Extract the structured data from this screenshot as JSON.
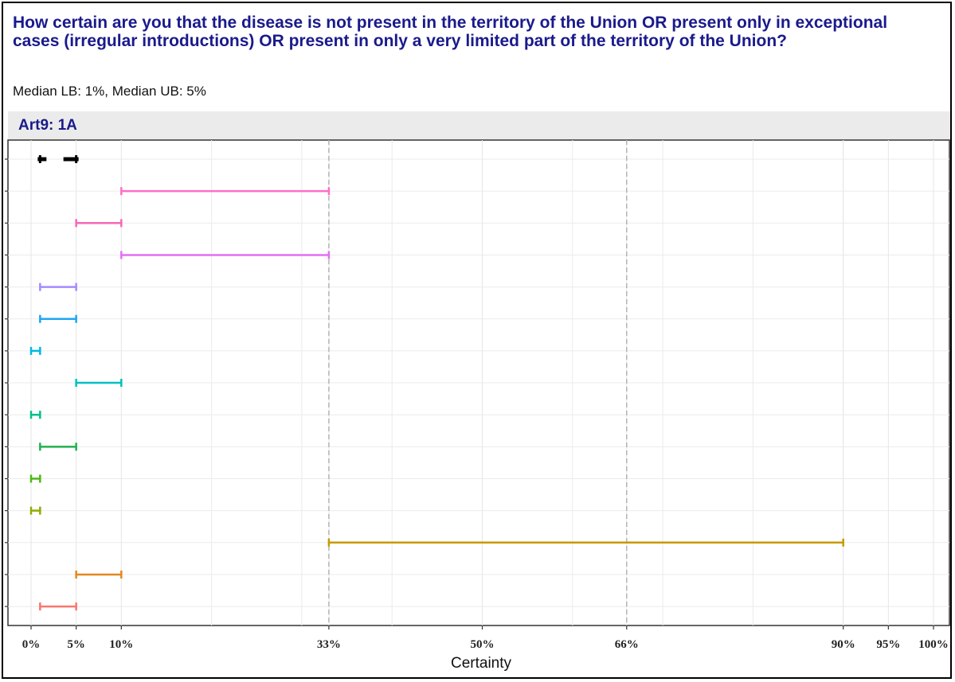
{
  "title": "How certain are you that the disease is not present in the territory of the Union OR present only in exceptional cases (irregular introductions) OR present in only a very limited part of the territory of the Union?",
  "subtitle": "Median LB: 1%, Median UB: 5%",
  "chart_data": {
    "type": "interval",
    "panel": "Art9: 1A",
    "xlabel": "Certainty",
    "x_ticks": [
      0,
      5,
      10,
      33,
      50,
      66,
      90,
      95,
      100
    ],
    "x_tick_labels": [
      "0%",
      "5%",
      "10%",
      "33%",
      "50%",
      "66%",
      "90%",
      "95%",
      "100%"
    ],
    "xlim": [
      0,
      100
    ],
    "reference_lines": [
      33,
      66
    ],
    "median": {
      "lb": 1,
      "ub": 5,
      "color": "#000000"
    },
    "intervals": [
      {
        "lb": 10,
        "ub": 33,
        "color": "#ff6ec7"
      },
      {
        "lb": 5,
        "ub": 10,
        "color": "#f766b8"
      },
      {
        "lb": 10,
        "ub": 33,
        "color": "#e36ef6"
      },
      {
        "lb": 1,
        "ub": 5,
        "color": "#a58aff"
      },
      {
        "lb": 1,
        "ub": 5,
        "color": "#1ea5f2"
      },
      {
        "lb": 0,
        "ub": 1,
        "color": "#00b9e3"
      },
      {
        "lb": 5,
        "ub": 10,
        "color": "#00bfc4"
      },
      {
        "lb": 0,
        "ub": 1,
        "color": "#00c08b"
      },
      {
        "lb": 1,
        "ub": 5,
        "color": "#22b04f"
      },
      {
        "lb": 0,
        "ub": 1,
        "color": "#4cb914"
      },
      {
        "lb": 0,
        "ub": 1,
        "color": "#93aa00"
      },
      {
        "lb": 33,
        "ub": 90,
        "color": "#c79a00"
      },
      {
        "lb": 5,
        "ub": 10,
        "color": "#e3881e"
      },
      {
        "lb": 1,
        "ub": 5,
        "color": "#f8766d"
      }
    ]
  }
}
